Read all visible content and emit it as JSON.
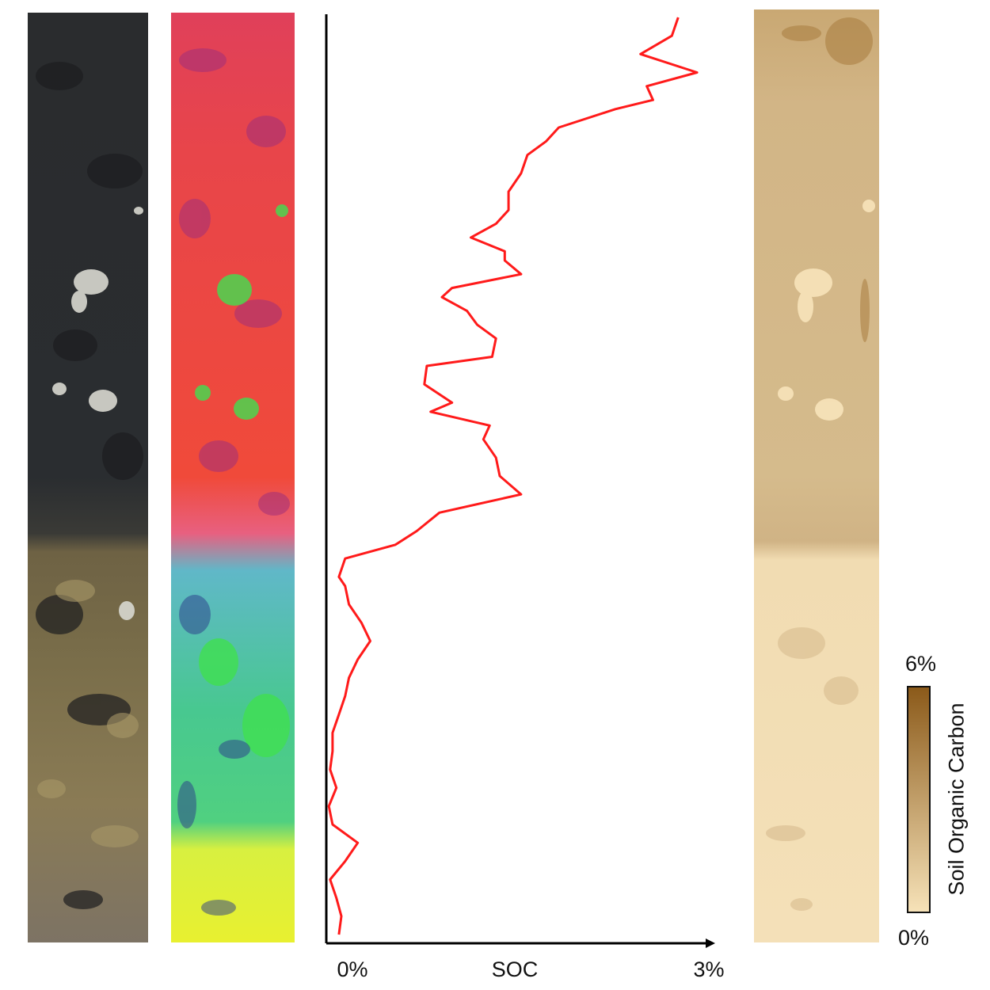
{
  "chart_data": {
    "type": "line",
    "orientation": "vertical-profile",
    "xlabel": "SOC",
    "xtick_min": "0%",
    "xtick_max": "3%",
    "xlim": [
      0,
      3
    ],
    "ylabel": "",
    "series": [
      {
        "color": "#ff1a1a",
        "profile_fraction_from_top": [
          0.0,
          0.02,
          0.04,
          0.06,
          0.075,
          0.09,
          0.1,
          0.12,
          0.135,
          0.15,
          0.17,
          0.19,
          0.21,
          0.225,
          0.24,
          0.255,
          0.265,
          0.28,
          0.295,
          0.305,
          0.32,
          0.335,
          0.35,
          0.37,
          0.38,
          0.4,
          0.42,
          0.43,
          0.445,
          0.46,
          0.48,
          0.5,
          0.52,
          0.54,
          0.56,
          0.575,
          0.59,
          0.61,
          0.62,
          0.64,
          0.66,
          0.68,
          0.7,
          0.72,
          0.74,
          0.76,
          0.78,
          0.8,
          0.82,
          0.84,
          0.86,
          0.88,
          0.9,
          0.92,
          0.94,
          0.96,
          0.98,
          1.0
        ],
        "values": [
          2.8,
          2.75,
          2.5,
          2.95,
          2.55,
          2.6,
          2.3,
          1.85,
          1.75,
          1.6,
          1.55,
          1.45,
          1.45,
          1.35,
          1.15,
          1.42,
          1.42,
          1.55,
          1.0,
          0.92,
          1.12,
          1.2,
          1.35,
          1.32,
          0.8,
          0.78,
          1.0,
          0.83,
          1.3,
          1.25,
          1.35,
          1.38,
          1.55,
          0.9,
          0.72,
          0.55,
          0.15,
          0.1,
          0.15,
          0.18,
          0.28,
          0.35,
          0.25,
          0.18,
          0.15,
          0.1,
          0.05,
          0.05,
          0.03,
          0.08,
          0.02,
          0.05,
          0.25,
          0.15,
          0.03,
          0.08,
          0.12,
          0.1
        ]
      }
    ]
  },
  "colorbar": {
    "title": "Soil Organic Carbon",
    "max_label": "6%",
    "min_label": "0%",
    "color_low": "#f6e2b8",
    "color_high": "#8b5a1a"
  },
  "panels": {
    "photo": "soil-core-photograph",
    "rgb": "false-color-hyperspectral-composite",
    "map": "soc-prediction-map"
  }
}
